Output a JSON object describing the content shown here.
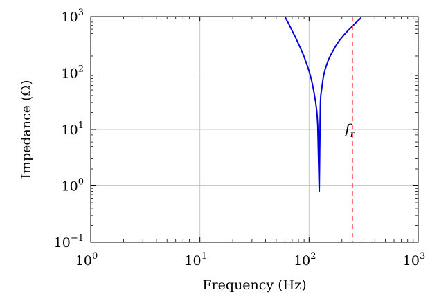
{
  "chart_data": {
    "type": "line",
    "xlabel": "Frequency (Hz)",
    "ylabel": "Impedance (Ω)",
    "xscale": "log",
    "yscale": "log",
    "xlim": [
      1,
      1000
    ],
    "ylim": [
      0.1,
      1000
    ],
    "grid": true,
    "x_ticks": [
      {
        "base": "10",
        "exp": "0",
        "value": 1
      },
      {
        "base": "10",
        "exp": "1",
        "value": 10
      },
      {
        "base": "10",
        "exp": "2",
        "value": 100
      },
      {
        "base": "10",
        "exp": "3",
        "value": 1000
      }
    ],
    "y_ticks": [
      {
        "base": "10",
        "exp": "−1",
        "value": 0.1
      },
      {
        "base": "10",
        "exp": "0",
        "value": 1
      },
      {
        "base": "10",
        "exp": "1",
        "value": 10
      },
      {
        "base": "10",
        "exp": "2",
        "value": 100
      },
      {
        "base": "10",
        "exp": "3",
        "value": 1000
      }
    ],
    "series": [
      {
        "color": "#0000dd",
        "points": [
          [
            60,
            1000
          ],
          [
            65,
            750
          ],
          [
            70,
            560
          ],
          [
            75,
            430
          ],
          [
            80,
            330
          ],
          [
            85,
            255
          ],
          [
            90,
            195
          ],
          [
            95,
            145
          ],
          [
            100,
            108
          ],
          [
            105,
            77
          ],
          [
            110,
            50
          ],
          [
            115,
            30
          ],
          [
            118,
            20
          ],
          [
            120,
            12
          ],
          [
            121,
            6
          ],
          [
            122,
            3
          ],
          [
            123,
            1.5
          ],
          [
            124,
            0.8
          ],
          [
            125,
            3
          ],
          [
            126,
            12
          ],
          [
            127,
            30
          ],
          [
            128,
            40
          ],
          [
            130,
            50
          ],
          [
            135,
            85
          ],
          [
            140,
            115
          ],
          [
            150,
            170
          ],
          [
            160,
            220
          ],
          [
            175,
            300
          ],
          [
            190,
            380
          ],
          [
            210,
            480
          ],
          [
            230,
            580
          ],
          [
            250,
            680
          ],
          [
            270,
            790
          ],
          [
            290,
            900
          ],
          [
            300,
            960
          ]
        ]
      }
    ],
    "annotations": [
      {
        "type": "vline",
        "x": 250,
        "color": "#ff5a5a",
        "style": "dashed",
        "label": "f",
        "label_sub": "r",
        "label_y": 10
      }
    ]
  }
}
